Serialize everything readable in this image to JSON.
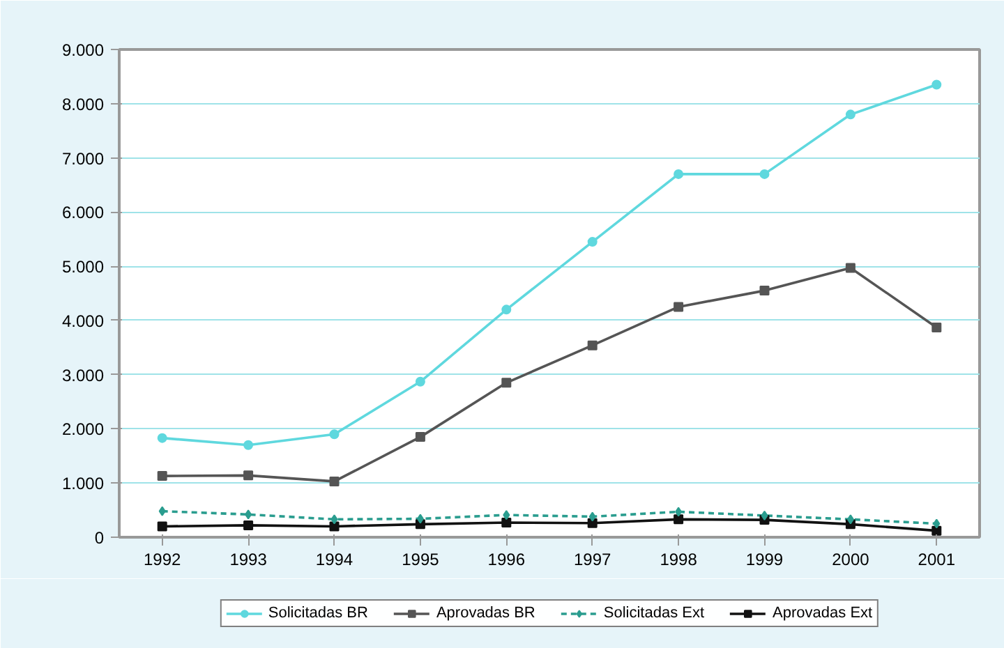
{
  "chart_data": {
    "type": "line",
    "categories": [
      "1992",
      "1993",
      "1994",
      "1995",
      "1996",
      "1997",
      "1998",
      "1999",
      "2000",
      "2001"
    ],
    "series": [
      {
        "name": "Solicitadas BR",
        "color": "#5fd8de",
        "marker": "circle",
        "line_style": "solid",
        "values": [
          1830,
          1700,
          1900,
          2870,
          4200,
          5450,
          6700,
          6700,
          7800,
          8350
        ]
      },
      {
        "name": "Aprovadas BR",
        "color": "#555555",
        "marker": "square",
        "line_style": "solid",
        "values": [
          1130,
          1140,
          1030,
          1850,
          2850,
          3540,
          4250,
          4550,
          4970,
          3870
        ]
      },
      {
        "name": "Solicitadas Ext",
        "color": "#2a9d8f",
        "marker": "diamond",
        "line_style": "dashed",
        "values": [
          480,
          420,
          330,
          340,
          410,
          380,
          470,
          400,
          330,
          250
        ]
      },
      {
        "name": "Aprovadas Ext",
        "color": "#111111",
        "marker": "square",
        "line_style": "solid",
        "values": [
          200,
          220,
          200,
          240,
          270,
          260,
          330,
          320,
          240,
          120
        ]
      }
    ],
    "ylim": [
      0,
      9000
    ],
    "yticks": [
      0,
      {
        "value": 1000,
        "label": "1.000"
      },
      {
        "value": 2000,
        "label": "2.000"
      },
      {
        "value": 3000,
        "label": "3.000"
      },
      {
        "value": 4000,
        "label": "4.000"
      },
      {
        "value": 5000,
        "label": "5.000"
      },
      {
        "value": 6000,
        "label": "6.000"
      },
      {
        "value": 7000,
        "label": "7.000"
      },
      {
        "value": 8000,
        "label": "8.000"
      },
      {
        "value": 9000,
        "label": "9.000"
      }
    ],
    "grid": "y",
    "legend": "bottom"
  }
}
